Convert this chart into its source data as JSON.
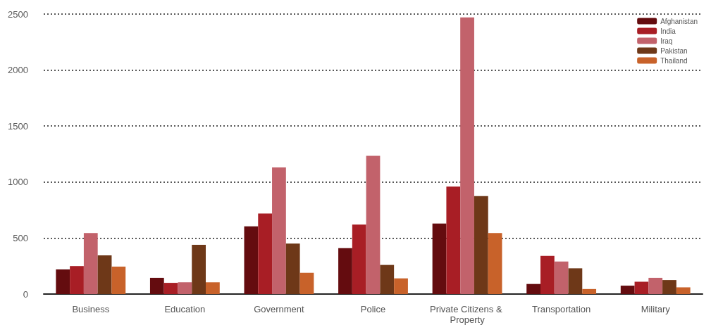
{
  "chart_data": {
    "type": "bar",
    "categories": [
      "Business",
      "Education",
      "Government",
      "Police",
      "Private Citizens & Property",
      "Transportation",
      "Military"
    ],
    "series": [
      {
        "name": "Afghanistan",
        "color": "#640c0f",
        "values": [
          220,
          145,
          605,
          410,
          630,
          90,
          75
        ]
      },
      {
        "name": "India",
        "color": "#a81e25",
        "values": [
          250,
          100,
          720,
          620,
          960,
          340,
          110
        ]
      },
      {
        "name": "Iraq",
        "color": "#c2626b",
        "values": [
          545,
          105,
          1130,
          1235,
          2470,
          290,
          145
        ]
      },
      {
        "name": "Pakistan",
        "color": "#6e3818",
        "values": [
          345,
          440,
          450,
          260,
          875,
          230,
          125
        ]
      },
      {
        "name": "Thailand",
        "color": "#c8622a",
        "values": [
          245,
          105,
          190,
          140,
          545,
          45,
          60
        ]
      }
    ],
    "ylim": [
      0,
      2500
    ],
    "yticks": [
      0,
      500,
      1000,
      1500,
      2000,
      2500
    ],
    "grid": "y",
    "legend": "top right"
  }
}
